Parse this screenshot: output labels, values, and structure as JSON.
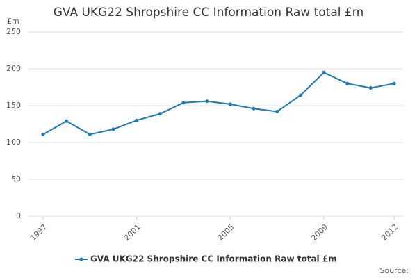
{
  "chart_data": {
    "type": "line",
    "title": "GVA UKG22 Shropshire CC Information Raw total £m",
    "y_unit": "£m",
    "source": "Source:",
    "x": [
      1997,
      1998,
      1999,
      2000,
      2001,
      2002,
      2003,
      2004,
      2005,
      2006,
      2007,
      2008,
      2009,
      2010,
      2011,
      2012
    ],
    "series": [
      {
        "name": "GVA UKG22 Shropshire CC Information Raw total £m",
        "color": "#1a7ab8",
        "values": [
          111,
          129,
          111,
          118,
          130,
          139,
          154,
          156,
          152,
          146,
          142,
          164,
          195,
          180,
          174,
          180
        ]
      }
    ],
    "xlim": [
      1997,
      2012
    ],
    "xticks": [
      1997,
      2001,
      2005,
      2009,
      2012
    ],
    "ylim": [
      0,
      250
    ],
    "yticks": [
      0,
      50,
      100,
      150,
      200,
      250
    ],
    "grid": true
  }
}
